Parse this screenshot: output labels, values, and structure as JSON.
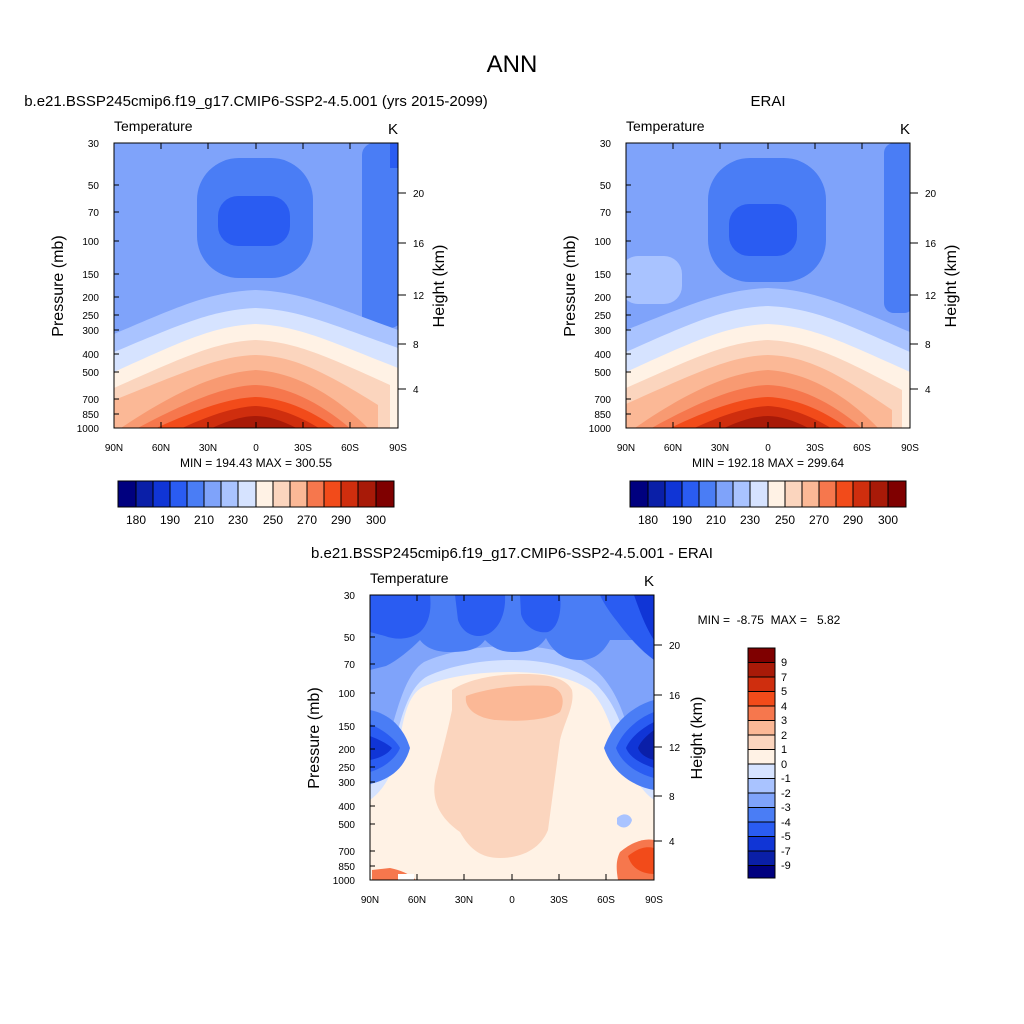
{
  "figure": {
    "title": "ANN",
    "colors": {
      "blue_deep": "#00007f",
      "blue_mid": "#2a5cf2",
      "blue_light": "#a9c3ff",
      "neutral": "#fff2e5",
      "red_light": "#fbb896",
      "red_mid": "#f24b1a",
      "red_deep": "#7f0000"
    }
  },
  "chart_data": [
    {
      "type": "heatmap",
      "id": "model",
      "title": "b.e21.BSSP245cmip6.f19_g17.CMIP6-SSP2-4.5.001 (yrs 2015-2099)",
      "left_string": "Temperature",
      "units": "K",
      "xlabel": "",
      "ylabel": "Pressure (mb)",
      "y2label": "Height (km)",
      "x_ticks": [
        "90N",
        "60N",
        "30N",
        "0",
        "30S",
        "60S",
        "90S"
      ],
      "y_ticks": [
        "30",
        "50",
        "70",
        "100",
        "150",
        "200",
        "250",
        "300",
        "400",
        "500",
        "700",
        "850",
        "1000"
      ],
      "height_ticks": [
        "20",
        "16",
        "12",
        "8",
        "4"
      ],
      "xlim": [
        90,
        -90
      ],
      "ylim": [
        1000,
        30
      ],
      "min_max_text": "MIN = 194.43  MAX = 300.55",
      "min": 194.43,
      "max": 300.55,
      "colorbar_labels": [
        "180",
        "190",
        "210",
        "230",
        "250",
        "270",
        "290",
        "300"
      ]
    },
    {
      "type": "heatmap",
      "id": "obs",
      "title": "ERAI",
      "left_string": "Temperature",
      "units": "K",
      "xlabel": "",
      "ylabel": "Pressure (mb)",
      "y2label": "Height (km)",
      "x_ticks": [
        "90N",
        "60N",
        "30N",
        "0",
        "30S",
        "60S",
        "90S"
      ],
      "y_ticks": [
        "30",
        "50",
        "70",
        "100",
        "150",
        "200",
        "250",
        "300",
        "400",
        "500",
        "700",
        "850",
        "1000"
      ],
      "height_ticks": [
        "20",
        "16",
        "12",
        "8",
        "4"
      ],
      "xlim": [
        90,
        -90
      ],
      "ylim": [
        1000,
        30
      ],
      "min_max_text": "MIN = 192.18  MAX = 299.64",
      "min": 192.18,
      "max": 299.64,
      "colorbar_labels": [
        "180",
        "190",
        "210",
        "230",
        "250",
        "270",
        "290",
        "300"
      ]
    },
    {
      "type": "heatmap",
      "id": "diff",
      "title": "b.e21.BSSP245cmip6.f19_g17.CMIP6-SSP2-4.5.001 - ERAI",
      "left_string": "Temperature",
      "units": "K",
      "xlabel": "",
      "ylabel": "Pressure (mb)",
      "y2label": "Height (km)",
      "x_ticks": [
        "90N",
        "60N",
        "30N",
        "0",
        "30S",
        "60S",
        "90S"
      ],
      "y_ticks": [
        "30",
        "50",
        "70",
        "100",
        "150",
        "200",
        "250",
        "300",
        "400",
        "500",
        "700",
        "850",
        "1000"
      ],
      "height_ticks": [
        "20",
        "16",
        "12",
        "8",
        "4"
      ],
      "xlim": [
        90,
        -90
      ],
      "ylim": [
        1000,
        30
      ],
      "min_max_text": "MIN =  -8.75  MAX =   5.82",
      "min": -8.75,
      "max": 5.82,
      "colorbar_labels": [
        "9",
        "7",
        "5",
        "4",
        "3",
        "2",
        "1",
        "0",
        "-1",
        "-2",
        "-3",
        "-4",
        "-5",
        "-7",
        "-9"
      ]
    }
  ]
}
